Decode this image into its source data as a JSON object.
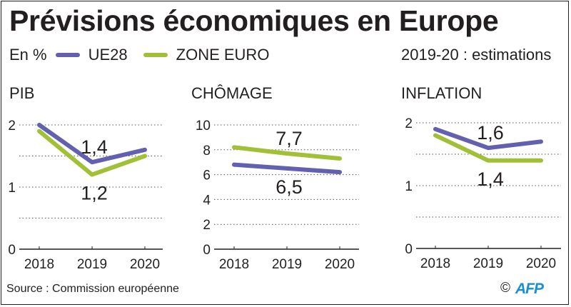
{
  "header": {
    "title": "Prévisions économiques en Europe",
    "unit_label": "En %",
    "note": "2019-20 : estimations"
  },
  "legend": [
    {
      "name": "UE28",
      "color": "#6460b0"
    },
    {
      "name": "ZONE EURO",
      "color": "#a2c037"
    }
  ],
  "chart_data": [
    {
      "type": "line",
      "title": "PIB",
      "x": [
        "2018",
        "2019",
        "2020"
      ],
      "ylim": [
        0,
        2
      ],
      "yticks": [
        "0",
        "1",
        "2"
      ],
      "grid": true,
      "series": [
        {
          "name": "UE28",
          "values": [
            2.0,
            1.4,
            1.6
          ]
        },
        {
          "name": "ZONE EURO",
          "values": [
            1.9,
            1.2,
            1.5
          ]
        }
      ],
      "annotations": [
        {
          "series": "UE28",
          "x": "2019",
          "text": "1,4",
          "position": "above"
        },
        {
          "series": "ZONE EURO",
          "x": "2019",
          "text": "1,2",
          "position": "below"
        }
      ]
    },
    {
      "type": "line",
      "title": "CHÔMAGE",
      "x": [
        "2018",
        "2019",
        "2020"
      ],
      "ylim": [
        0,
        10
      ],
      "yticks": [
        "0",
        "2",
        "4",
        "6",
        "8",
        "10"
      ],
      "grid": true,
      "series": [
        {
          "name": "UE28",
          "values": [
            6.8,
            6.5,
            6.2
          ]
        },
        {
          "name": "ZONE EURO",
          "values": [
            8.2,
            7.7,
            7.3
          ]
        }
      ],
      "annotations": [
        {
          "series": "ZONE EURO",
          "x": "2019",
          "text": "7,7",
          "position": "above"
        },
        {
          "series": "UE28",
          "x": "2019",
          "text": "6,5",
          "position": "below"
        }
      ]
    },
    {
      "type": "line",
      "title": "INFLATION",
      "x": [
        "2018",
        "2019",
        "2020"
      ],
      "ylim": [
        0,
        2
      ],
      "yticks": [
        "0",
        "1",
        "2"
      ],
      "grid": true,
      "series": [
        {
          "name": "UE28",
          "values": [
            1.9,
            1.6,
            1.7
          ]
        },
        {
          "name": "ZONE EURO",
          "values": [
            1.8,
            1.4,
            1.4
          ]
        }
      ],
      "annotations": [
        {
          "series": "UE28",
          "x": "2019",
          "text": "1,6",
          "position": "above"
        },
        {
          "series": "ZONE EURO",
          "x": "2019",
          "text": "1,4",
          "position": "below"
        }
      ]
    }
  ],
  "footer": {
    "source": "Source : Commission européenne",
    "copyright": "©",
    "agency": "AFP"
  }
}
